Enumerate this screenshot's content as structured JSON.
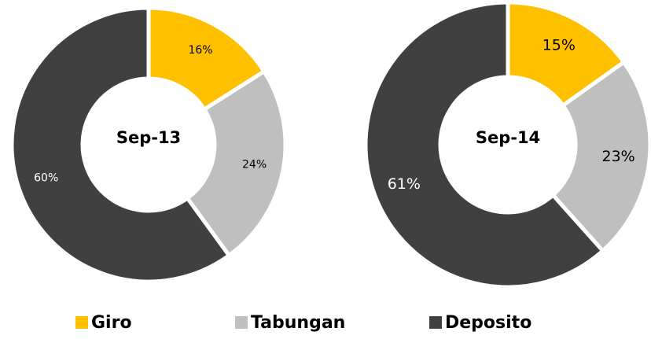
{
  "chart_data": [
    {
      "type": "pie",
      "title": "Sep-13",
      "categories": [
        "Giro",
        "Tabungan",
        "Deposito"
      ],
      "values": [
        16,
        24,
        60
      ],
      "value_labels": [
        "16%",
        "24%",
        "60%"
      ],
      "colors": [
        "#FFC000",
        "#BFBFBF",
        "#404040"
      ]
    },
    {
      "type": "pie",
      "title": "Sep-14",
      "categories": [
        "Giro",
        "Tabungan",
        "Deposito"
      ],
      "values": [
        15,
        23,
        61
      ],
      "value_labels": [
        "15%",
        "23%",
        "61%"
      ],
      "colors": [
        "#FFC000",
        "#BFBFBF",
        "#404040"
      ]
    }
  ]
}
